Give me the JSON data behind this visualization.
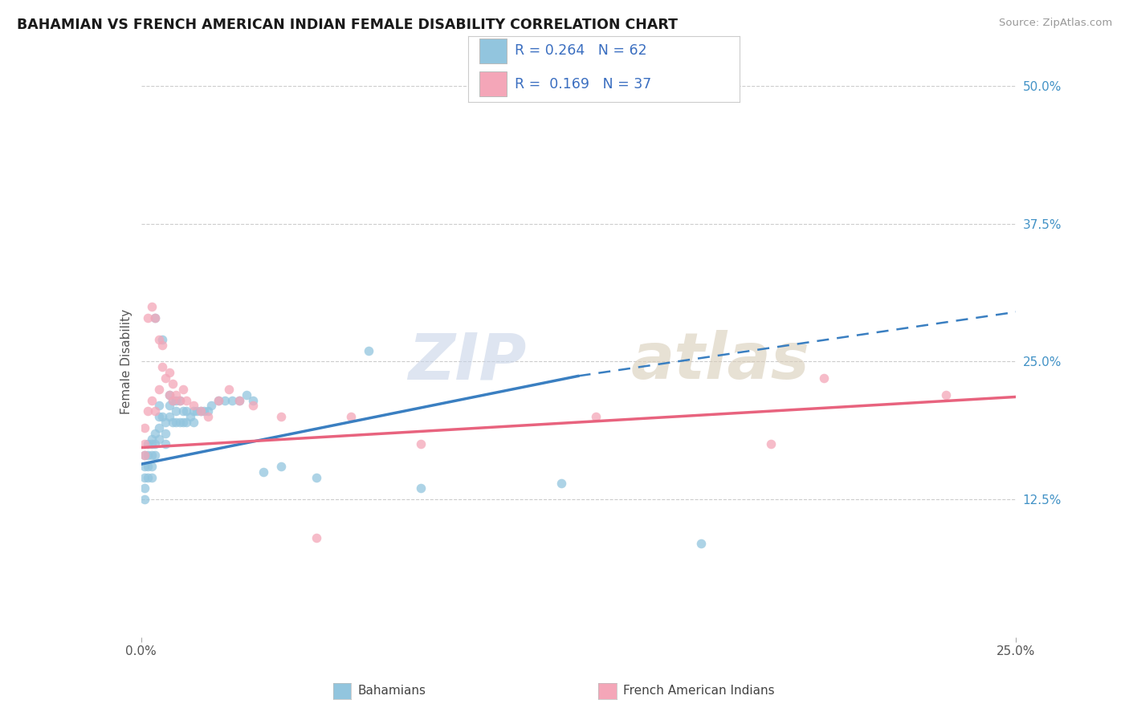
{
  "title": "BAHAMIAN VS FRENCH AMERICAN INDIAN FEMALE DISABILITY CORRELATION CHART",
  "source": "Source: ZipAtlas.com",
  "ylabel": "Female Disability",
  "xlim": [
    0.0,
    0.25
  ],
  "ylim": [
    0.0,
    0.5
  ],
  "xtick_vals": [
    0.0,
    0.25
  ],
  "xtick_labels": [
    "0.0%",
    "25.0%"
  ],
  "ytick_vals": [
    0.125,
    0.25,
    0.375,
    0.5
  ],
  "ytick_labels": [
    "12.5%",
    "25.0%",
    "37.5%",
    "50.0%"
  ],
  "R_blue": 0.264,
  "N_blue": 62,
  "R_pink": 0.169,
  "N_pink": 37,
  "color_blue": "#92c5de",
  "color_pink": "#f4a6b8",
  "color_blue_line": "#3a7fc1",
  "color_pink_line": "#e8637e",
  "blue_line_x0": 0.0,
  "blue_line_y0": 0.157,
  "blue_line_x_solid_end": 0.125,
  "blue_line_y_solid_end": 0.237,
  "blue_line_x1": 0.25,
  "blue_line_y1": 0.295,
  "pink_line_x0": 0.0,
  "pink_line_y0": 0.172,
  "pink_line_x1": 0.25,
  "pink_line_y1": 0.218,
  "bahamian_x": [
    0.001,
    0.001,
    0.001,
    0.001,
    0.001,
    0.002,
    0.002,
    0.002,
    0.002,
    0.003,
    0.003,
    0.003,
    0.003,
    0.003,
    0.004,
    0.004,
    0.004,
    0.004,
    0.005,
    0.005,
    0.005,
    0.005,
    0.006,
    0.006,
    0.007,
    0.007,
    0.007,
    0.008,
    0.008,
    0.008,
    0.009,
    0.009,
    0.01,
    0.01,
    0.01,
    0.011,
    0.011,
    0.012,
    0.012,
    0.013,
    0.013,
    0.014,
    0.015,
    0.015,
    0.016,
    0.017,
    0.018,
    0.019,
    0.02,
    0.022,
    0.024,
    0.026,
    0.028,
    0.03,
    0.032,
    0.035,
    0.04,
    0.05,
    0.065,
    0.08,
    0.12,
    0.16
  ],
  "bahamian_y": [
    0.165,
    0.155,
    0.145,
    0.135,
    0.125,
    0.175,
    0.165,
    0.155,
    0.145,
    0.18,
    0.175,
    0.165,
    0.155,
    0.145,
    0.29,
    0.185,
    0.175,
    0.165,
    0.21,
    0.2,
    0.19,
    0.18,
    0.27,
    0.2,
    0.195,
    0.185,
    0.175,
    0.22,
    0.21,
    0.2,
    0.215,
    0.195,
    0.215,
    0.205,
    0.195,
    0.215,
    0.195,
    0.205,
    0.195,
    0.205,
    0.195,
    0.2,
    0.205,
    0.195,
    0.205,
    0.205,
    0.205,
    0.205,
    0.21,
    0.215,
    0.215,
    0.215,
    0.215,
    0.22,
    0.215,
    0.15,
    0.155,
    0.145,
    0.26,
    0.135,
    0.14,
    0.085
  ],
  "french_x": [
    0.001,
    0.001,
    0.001,
    0.002,
    0.002,
    0.003,
    0.003,
    0.004,
    0.004,
    0.005,
    0.005,
    0.006,
    0.006,
    0.007,
    0.008,
    0.008,
    0.009,
    0.009,
    0.01,
    0.011,
    0.012,
    0.013,
    0.015,
    0.017,
    0.019,
    0.022,
    0.025,
    0.028,
    0.032,
    0.04,
    0.05,
    0.06,
    0.08,
    0.13,
    0.18,
    0.195,
    0.23
  ],
  "french_y": [
    0.19,
    0.175,
    0.165,
    0.29,
    0.205,
    0.3,
    0.215,
    0.29,
    0.205,
    0.27,
    0.225,
    0.265,
    0.245,
    0.235,
    0.24,
    0.22,
    0.23,
    0.215,
    0.22,
    0.215,
    0.225,
    0.215,
    0.21,
    0.205,
    0.2,
    0.215,
    0.225,
    0.215,
    0.21,
    0.2,
    0.09,
    0.2,
    0.175,
    0.2,
    0.175,
    0.235,
    0.22
  ]
}
